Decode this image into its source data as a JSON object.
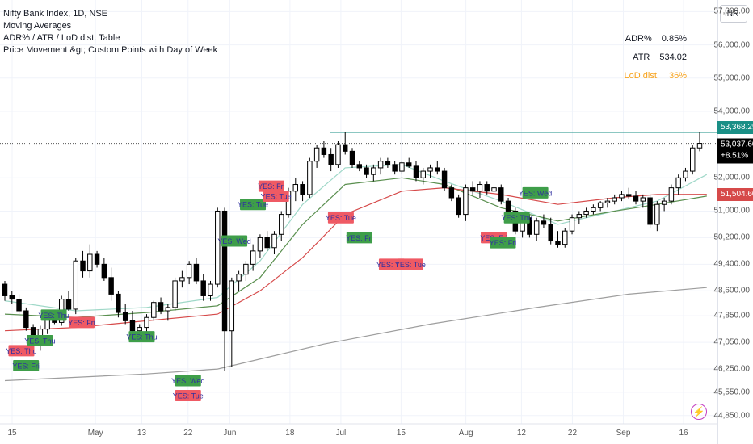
{
  "legend": {
    "title": "Nifty Bank Index, 1D, NSE",
    "line2": "Moving Averages",
    "line3": "ADR% / ATR / LoD dist. Table",
    "line4": "Price Movement &gt; Custom Points with Day of Week"
  },
  "stats_table": {
    "adr_label": "ADR%",
    "adr_value": "0.85%",
    "atr_label": "ATR",
    "atr_value": "534.02",
    "lod_label": "LoD dist.",
    "lod_value": "36%"
  },
  "axis_currency": "INR",
  "price_tags": {
    "high": "53,368.25",
    "last": "53,037.60",
    "last_change": "+8.51%",
    "ma": "51,504.60"
  },
  "colors": {
    "bull_body": "#ffffff",
    "bear_body": "#000000",
    "ma_fast": "#9fd8c8",
    "ma_green": "#5a8f4f",
    "ma_red": "#d64a4a",
    "ma_long": "#9e9e9e",
    "yes_green": "#3e9e49",
    "yes_red": "#ef5a64",
    "high_line": "#1a8f86"
  },
  "chart_data": {
    "type": "candlestick",
    "y_ticks": [
      "57,000.00",
      "56,000.00",
      "55,000.00",
      "54,000.00",
      "52,000.00",
      "51,000.00",
      "50,200.00",
      "49,400.00",
      "48,600.00",
      "47,850.00",
      "47,050.00",
      "46,250.00",
      "45,550.00",
      "44,850.00"
    ],
    "x_ticks": [
      "15",
      "May",
      "13",
      "22",
      "Jun",
      "18",
      "Jul",
      "15",
      "Aug",
      "12",
      "22",
      "Sep",
      "16"
    ],
    "ylim": [
      44600,
      57350
    ],
    "candles": [
      [
        48800,
        48900,
        48300,
        48450
      ],
      [
        48450,
        48600,
        48200,
        48350
      ],
      [
        48350,
        48500,
        47900,
        48000
      ],
      [
        48000,
        48100,
        47400,
        47500
      ],
      [
        47500,
        47600,
        46900,
        47000
      ],
      [
        47000,
        47550,
        46800,
        47450
      ],
      [
        47450,
        47900,
        47300,
        47850
      ],
      [
        47850,
        48000,
        47600,
        47650
      ],
      [
        47650,
        48450,
        47550,
        48350
      ],
      [
        48350,
        48600,
        48000,
        48050
      ],
      [
        48050,
        49600,
        47900,
        49500
      ],
      [
        49500,
        49800,
        49000,
        49200
      ],
      [
        49200,
        50000,
        49000,
        49700
      ],
      [
        49700,
        49800,
        49300,
        49400
      ],
      [
        49400,
        49600,
        48900,
        49000
      ],
      [
        49000,
        49300,
        48300,
        48500
      ],
      [
        48500,
        48600,
        47800,
        47950
      ],
      [
        47950,
        48200,
        47600,
        47700
      ],
      [
        47700,
        48000,
        47300,
        47400
      ],
      [
        47400,
        47600,
        47100,
        47500
      ],
      [
        47500,
        47900,
        47300,
        47800
      ],
      [
        47800,
        48300,
        47700,
        48250
      ],
      [
        48250,
        48400,
        47900,
        48000
      ],
      [
        48000,
        48200,
        47700,
        48100
      ],
      [
        48100,
        49000,
        48000,
        48900
      ],
      [
        48900,
        49200,
        48700,
        49000
      ],
      [
        49000,
        49500,
        48800,
        49400
      ],
      [
        49400,
        49600,
        48800,
        48900
      ],
      [
        48900,
        49100,
        48300,
        48450
      ],
      [
        48450,
        48900,
        48300,
        48800
      ],
      [
        48800,
        51100,
        48700,
        51000
      ],
      [
        51000,
        51100,
        46200,
        47400
      ],
      [
        47400,
        49000,
        46300,
        48900
      ],
      [
        48900,
        49200,
        48600,
        49100
      ],
      [
        49100,
        49500,
        48900,
        49400
      ],
      [
        49400,
        50000,
        49200,
        49800
      ],
      [
        49800,
        50300,
        49600,
        50200
      ],
      [
        50200,
        50400,
        49800,
        49900
      ],
      [
        49900,
        50400,
        49700,
        50300
      ],
      [
        50300,
        51000,
        50100,
        50900
      ],
      [
        50900,
        51700,
        50800,
        51600
      ],
      [
        51600,
        52000,
        51300,
        51800
      ],
      [
        51800,
        51900,
        51300,
        51500
      ],
      [
        51500,
        52600,
        51400,
        52500
      ],
      [
        52500,
        53000,
        52300,
        52900
      ],
      [
        52900,
        53100,
        52600,
        52700
      ],
      [
        52700,
        52900,
        52200,
        52400
      ],
      [
        52400,
        53100,
        52300,
        53000
      ],
      [
        53000,
        53368,
        52700,
        52800
      ],
      [
        52800,
        52900,
        52300,
        52400
      ],
      [
        52400,
        52500,
        52200,
        52300
      ],
      [
        52300,
        52400,
        52000,
        52100
      ],
      [
        52100,
        52400,
        51900,
        52300
      ],
      [
        52300,
        52600,
        52100,
        52500
      ],
      [
        52500,
        52600,
        52300,
        52400
      ],
      [
        52400,
        52500,
        52100,
        52200
      ],
      [
        52200,
        52500,
        52100,
        52450
      ],
      [
        52450,
        52600,
        52300,
        52350
      ],
      [
        52350,
        52500,
        51900,
        52000
      ],
      [
        52000,
        52300,
        51800,
        52200
      ],
      [
        52200,
        52400,
        52000,
        52300
      ],
      [
        52300,
        52500,
        52100,
        52200
      ],
      [
        52200,
        52300,
        51600,
        51700
      ],
      [
        51700,
        51800,
        51300,
        51400
      ],
      [
        51400,
        51500,
        50800,
        50900
      ],
      [
        50900,
        51800,
        50700,
        51700
      ],
      [
        51700,
        51900,
        51500,
        51600
      ],
      [
        51600,
        51900,
        51400,
        51800
      ],
      [
        51800,
        51900,
        51500,
        51600
      ],
      [
        51600,
        51800,
        51300,
        51700
      ],
      [
        51700,
        51800,
        51200,
        51300
      ],
      [
        51300,
        51400,
        50900,
        51000
      ],
      [
        51000,
        51100,
        50300,
        50400
      ],
      [
        50400,
        50900,
        50200,
        50800
      ],
      [
        50800,
        50900,
        50200,
        50300
      ],
      [
        50300,
        50800,
        50100,
        50700
      ],
      [
        50700,
        50900,
        50500,
        50600
      ],
      [
        50600,
        50800,
        50000,
        50100
      ],
      [
        50100,
        50400,
        49900,
        50000
      ],
      [
        50000,
        50500,
        49900,
        50400
      ],
      [
        50400,
        50900,
        50300,
        50800
      ],
      [
        50800,
        51000,
        50600,
        50900
      ],
      [
        50900,
        51100,
        50800,
        51000
      ],
      [
        51000,
        51200,
        50900,
        51100
      ],
      [
        51100,
        51300,
        51000,
        51250
      ],
      [
        51250,
        51400,
        51100,
        51300
      ],
      [
        51300,
        51500,
        51200,
        51400
      ],
      [
        51400,
        51600,
        51300,
        51500
      ],
      [
        51500,
        51700,
        51350,
        51450
      ],
      [
        51450,
        51600,
        51200,
        51300
      ],
      [
        51300,
        51500,
        51100,
        51400
      ],
      [
        51400,
        51500,
        50500,
        50600
      ],
      [
        50600,
        51300,
        50400,
        51200
      ],
      [
        51200,
        51400,
        51000,
        51300
      ],
      [
        51300,
        51800,
        51200,
        51700
      ],
      [
        51700,
        52100,
        51500,
        52000
      ],
      [
        52000,
        52300,
        51900,
        52200
      ],
      [
        52200,
        53000,
        52100,
        52900
      ],
      [
        52900,
        53368,
        52800,
        53037.6
      ]
    ],
    "moving_averages": [
      {
        "color_key": "ma_fast",
        "points": [
          [
            0,
            48300
          ],
          [
            10,
            48000
          ],
          [
            20,
            48100
          ],
          [
            30,
            48400
          ],
          [
            36,
            49500
          ],
          [
            42,
            51200
          ],
          [
            48,
            52300
          ],
          [
            56,
            52400
          ],
          [
            62,
            51900
          ],
          [
            70,
            51300
          ],
          [
            78,
            50600
          ],
          [
            86,
            51000
          ],
          [
            92,
            51300
          ],
          [
            99,
            52100
          ]
        ]
      },
      {
        "color_key": "ma_green",
        "points": [
          [
            0,
            47900
          ],
          [
            10,
            47800
          ],
          [
            20,
            47950
          ],
          [
            30,
            48150
          ],
          [
            36,
            49000
          ],
          [
            42,
            50600
          ],
          [
            48,
            51800
          ],
          [
            56,
            52000
          ],
          [
            62,
            51800
          ],
          [
            70,
            51100
          ],
          [
            78,
            50700
          ],
          [
            86,
            51000
          ],
          [
            92,
            51200
          ],
          [
            99,
            51450
          ]
        ]
      },
      {
        "color_key": "ma_red",
        "points": [
          [
            0,
            47400
          ],
          [
            10,
            47500
          ],
          [
            20,
            47700
          ],
          [
            30,
            47900
          ],
          [
            36,
            48600
          ],
          [
            42,
            49600
          ],
          [
            48,
            50900
          ],
          [
            56,
            51600
          ],
          [
            62,
            51700
          ],
          [
            70,
            51500
          ],
          [
            78,
            51200
          ],
          [
            86,
            51400
          ],
          [
            92,
            51500
          ],
          [
            99,
            51504.6
          ]
        ]
      },
      {
        "color_key": "ma_long",
        "points": [
          [
            0,
            45900
          ],
          [
            20,
            46100
          ],
          [
            30,
            46250
          ],
          [
            45,
            47000
          ],
          [
            60,
            47600
          ],
          [
            75,
            48100
          ],
          [
            88,
            48500
          ],
          [
            99,
            48700
          ]
        ]
      }
    ],
    "yes_labels": [
      {
        "text": "YES: Thu",
        "i": 2,
        "color_key": "yes_red",
        "price": 46800
      },
      {
        "text": "YES: Fri",
        "i": 3,
        "color_key": "yes_green",
        "price": 46350
      },
      {
        "text": "YES: Thu",
        "i": 6,
        "color_key": "yes_green",
        "price": 47100
      },
      {
        "text": "YES: Thu",
        "i": 9,
        "color_key": "yes_green",
        "price": 47870
      },
      {
        "text": "YES: Fri",
        "i": 15,
        "color_key": "yes_red",
        "price": 47650
      },
      {
        "text": "YES: Thu",
        "i": 28,
        "color_key": "yes_green",
        "price": 47220
      },
      {
        "text": "YES: Wed",
        "i": 38,
        "color_key": "yes_green",
        "price": 45900
      },
      {
        "text": "YES: Tue",
        "i": 38,
        "color_key": "yes_red",
        "price": 45450
      },
      {
        "text": "YES: Wed",
        "i": 48,
        "color_key": "yes_green",
        "price": 50100
      },
      {
        "text": "YES: Tue",
        "i": 52,
        "color_key": "yes_green",
        "price": 51200
      },
      {
        "text": "YES: Fri",
        "i": 56,
        "color_key": "yes_red",
        "price": 51750
      },
      {
        "text": "YES: Tue",
        "i": 57,
        "color_key": "yes_red",
        "price": 51450
      },
      {
        "text": "YES: Tue",
        "i": 71,
        "color_key": "yes_red",
        "price": 50800
      },
      {
        "text": "YES: Fri",
        "i": 75,
        "color_key": "yes_green",
        "price": 50200
      },
      {
        "text": "YES: Tue",
        "i": 82,
        "color_key": "yes_red",
        "price": 49400
      },
      {
        "text": "YES: Tue",
        "i": 86,
        "color_key": "yes_red",
        "price": 49400
      },
      {
        "text": "YES: Fri",
        "i": 104,
        "color_key": "yes_red",
        "price": 50200
      },
      {
        "text": "YES: Fri",
        "i": 106,
        "color_key": "yes_green",
        "price": 50050
      },
      {
        "text": "YES: Thu",
        "i": 109,
        "color_key": "yes_green",
        "price": 50800
      },
      {
        "text": "YES: Wed",
        "i": 113,
        "color_key": "yes_green",
        "price": 51550
      }
    ]
  }
}
